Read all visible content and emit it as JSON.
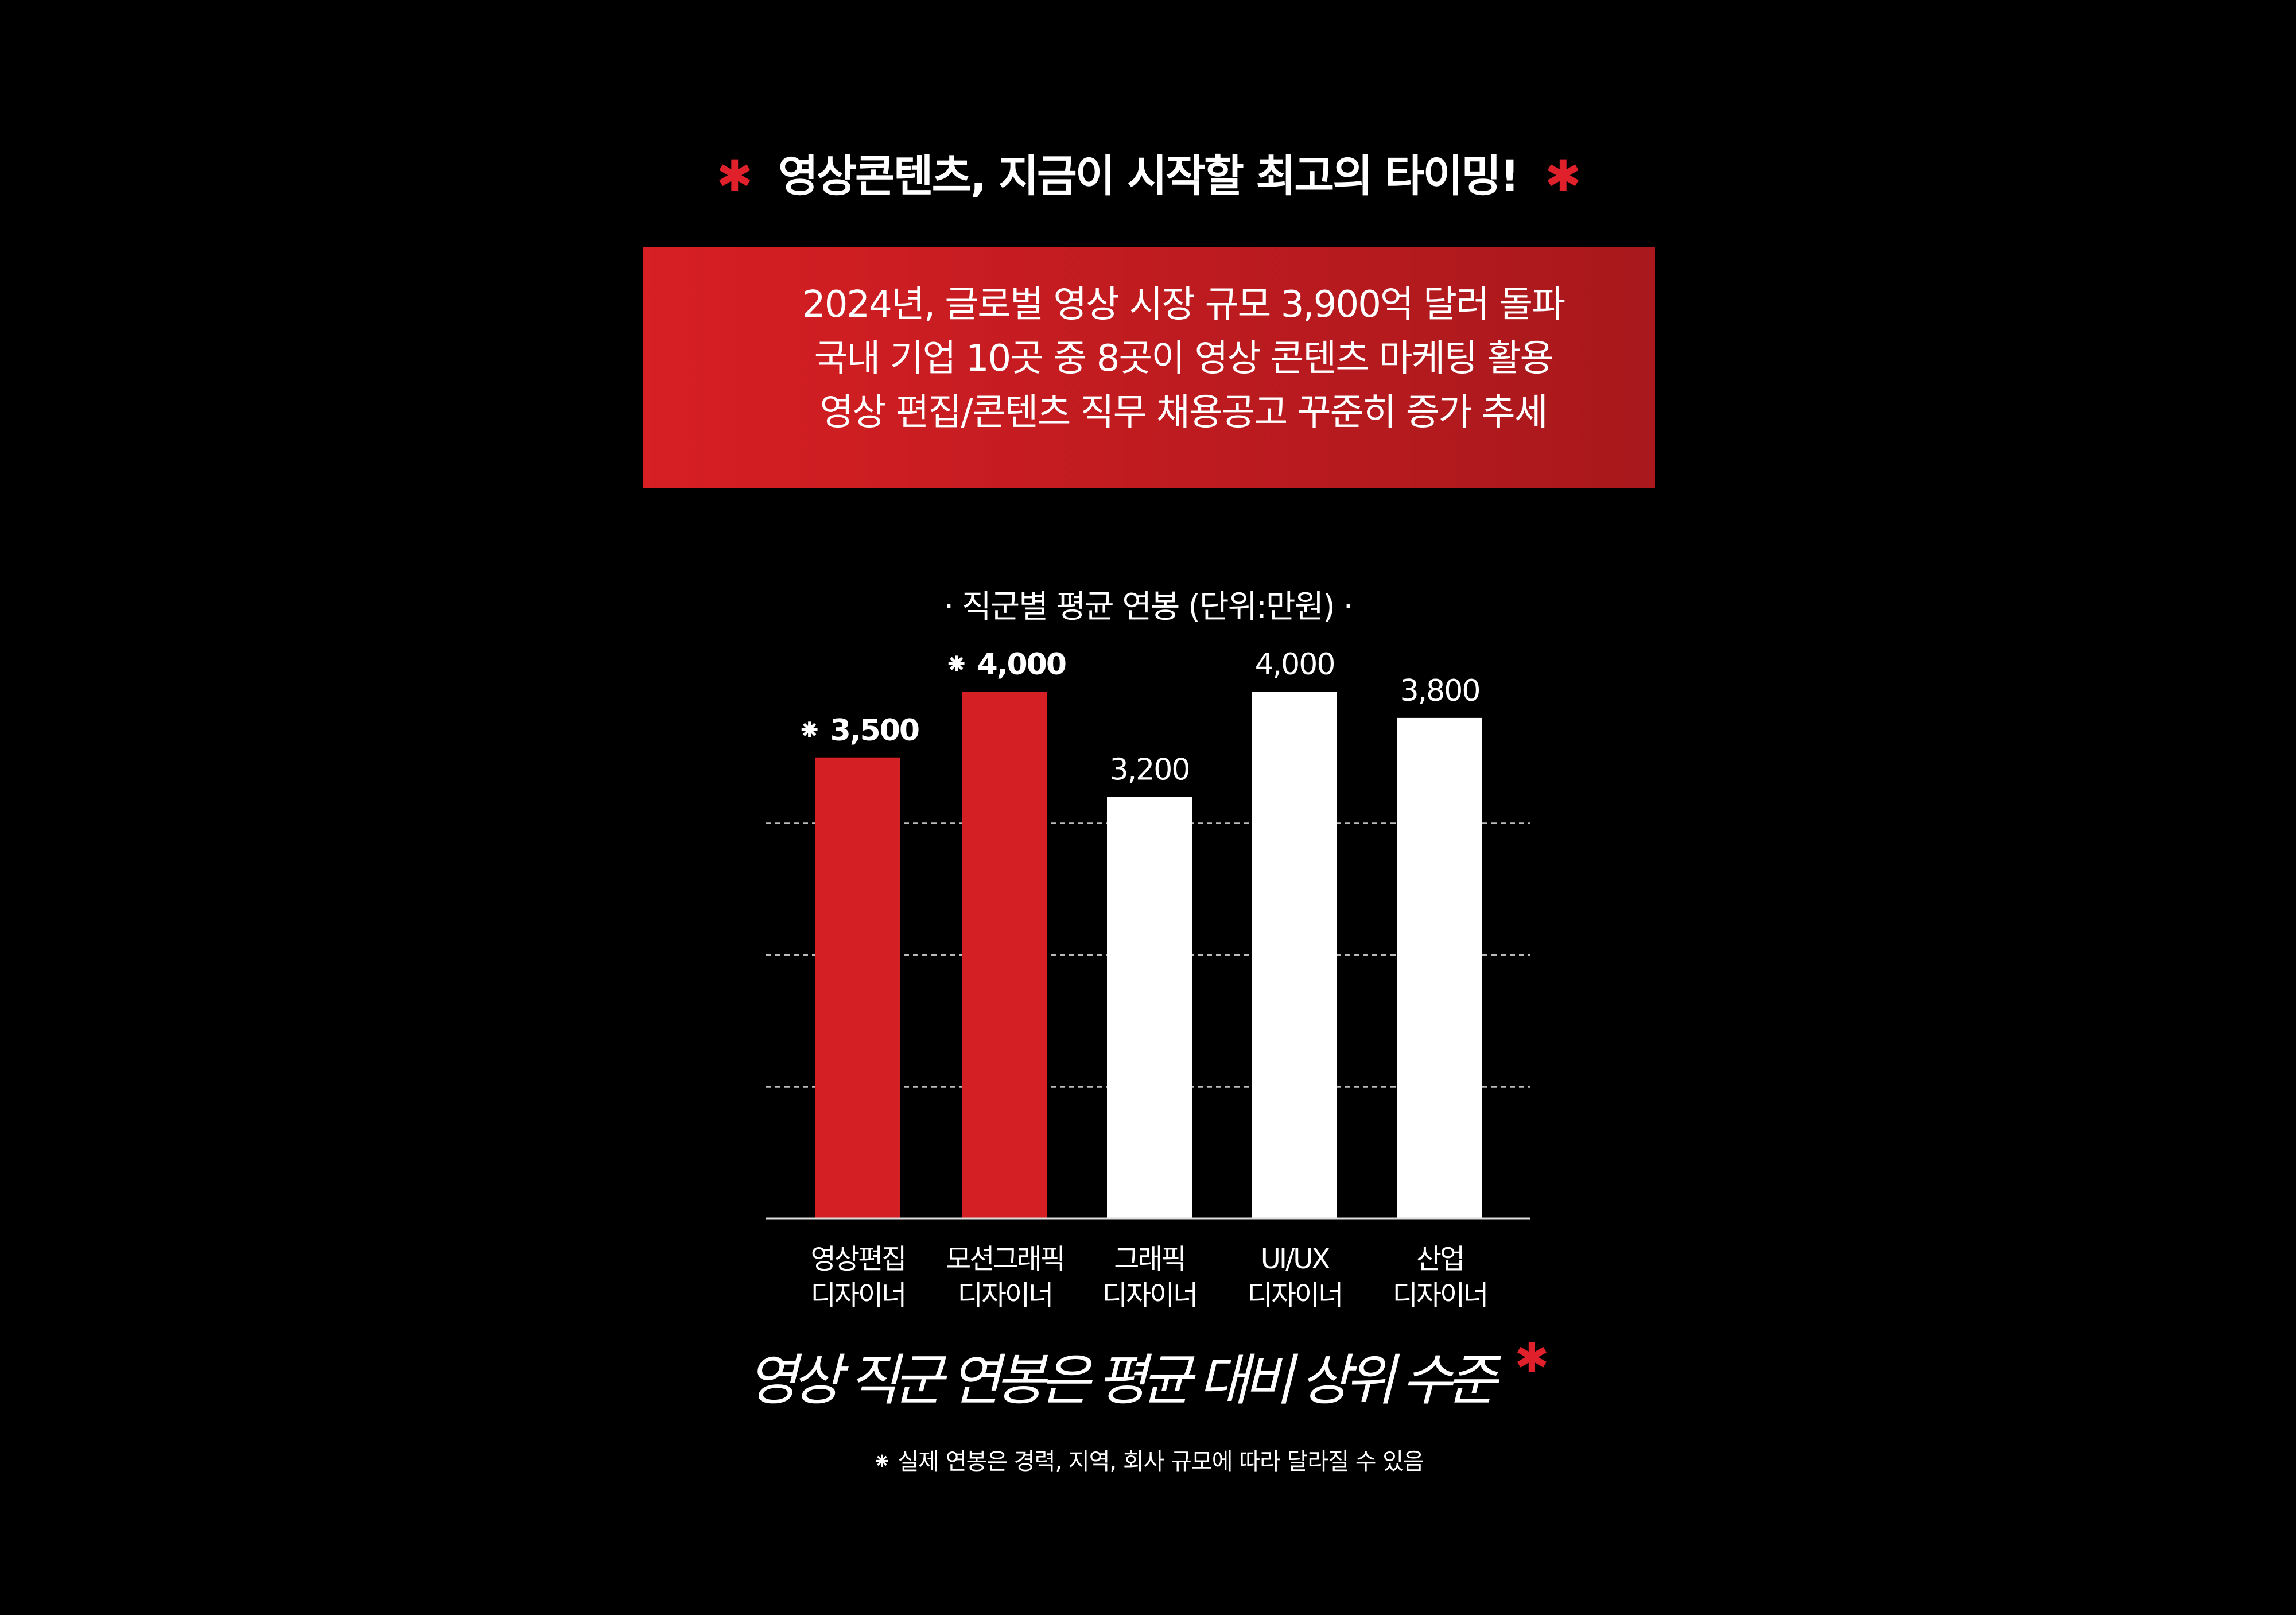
{
  "header": {
    "title": "영상콘텐츠, 지금이 시작할 최고의 타이밍!",
    "asterisk": "✱"
  },
  "highlight_box": {
    "lines": [
      "2024년, 글로벌 영상 시장 규모 3,900억 달러 돌파",
      "국내 기업 10곳 중 8곳이 영상 콘텐츠 마케팅 활용",
      "영상 편집/콘텐츠 직무 채용공고 꾸준히 증가 추세"
    ]
  },
  "chart_data": {
    "type": "bar",
    "title": "· 직군별 평균 연봉 (단위:만원) ·",
    "categories": [
      [
        "영상편집",
        "디자이너"
      ],
      [
        "모션그래픽",
        "디자이너"
      ],
      [
        "그래픽",
        "디자이너"
      ],
      [
        "UI/UX",
        "디자이너"
      ],
      [
        "산업",
        "디자이너"
      ]
    ],
    "values": [
      3500,
      4000,
      3200,
      4000,
      3800
    ],
    "value_labels": [
      "⁕ 3,500",
      "⁕ 4,000",
      "3,200",
      "4,000",
      "3,800"
    ],
    "highlighted": [
      true,
      true,
      false,
      false,
      false
    ],
    "ylim": [
      0,
      4000
    ],
    "gridlines": [
      1000,
      2000,
      3000
    ],
    "grid": true,
    "colors": {
      "highlight": "#d41f25",
      "normal": "#ffffff"
    }
  },
  "slogan": "영상 직군 연봉은 평균 대비 상위 수준",
  "footnote": "⁕ 실제 연봉은 경력, 지역, 회사 규모에 따라 달라질 수 있음"
}
